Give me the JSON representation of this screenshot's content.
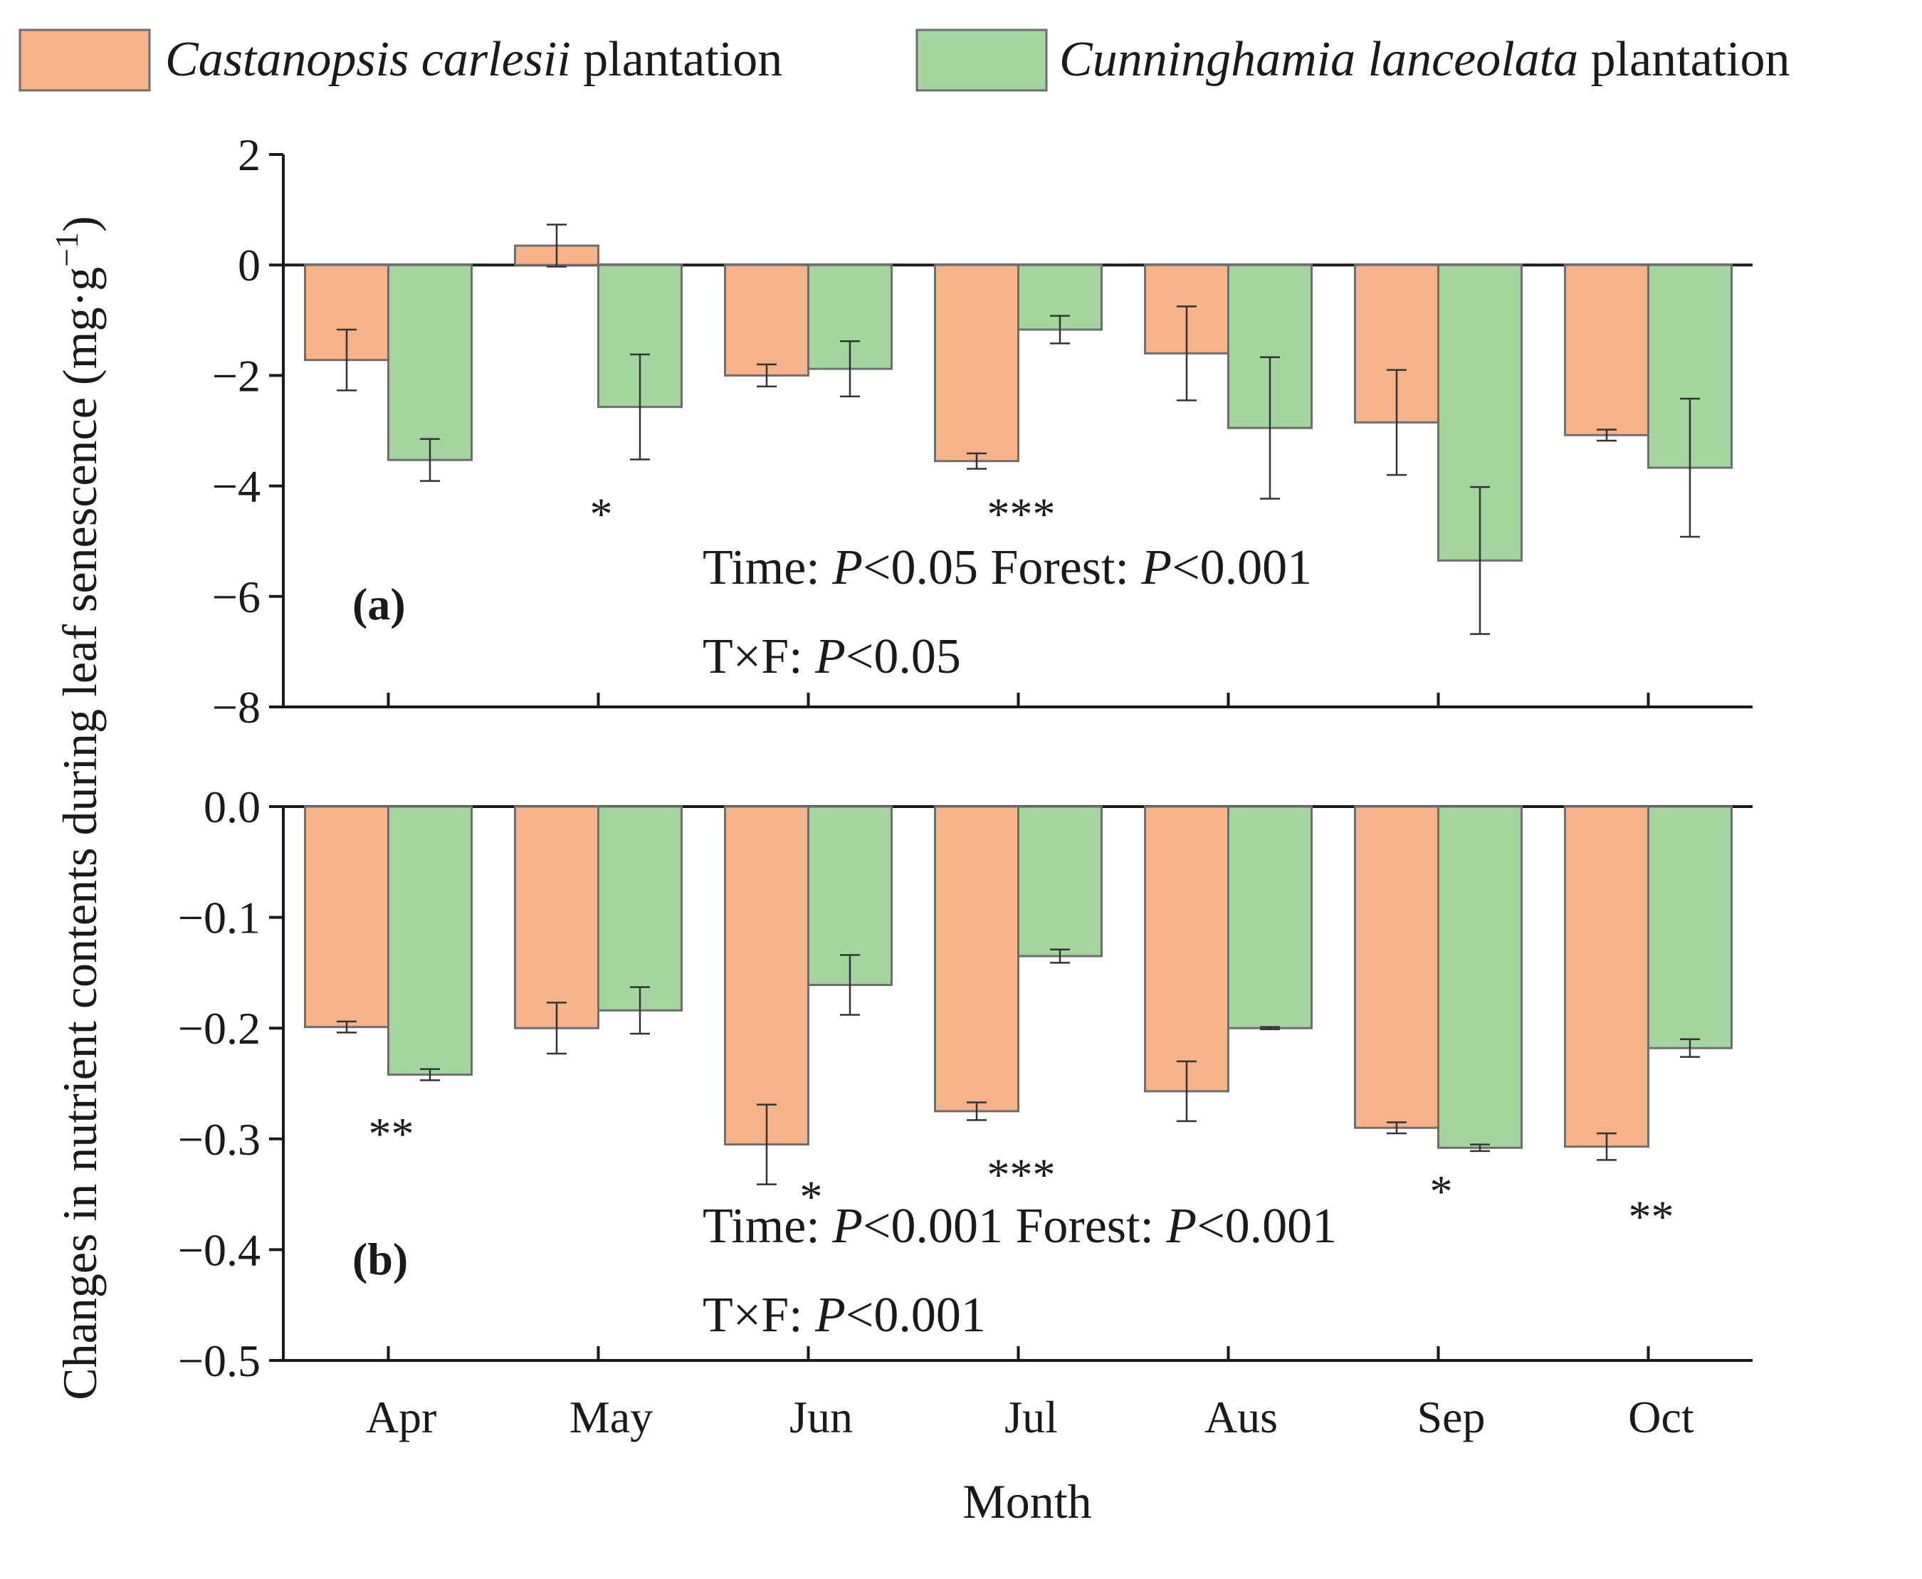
{
  "legend": [
    {
      "italic": "Castanopsis carlesii",
      "rest": " plantation",
      "color": "#f6b389"
    },
    {
      "italic": "Cunninghamia lanceolata",
      "rest": " plantation",
      "color": "#a3d69f"
    }
  ],
  "ylabel_main": "Changes in nutrient contents during leaf senescence (mg·g",
  "ylabel_sup": "−1",
  "ylabel_end": ")",
  "xlabel": "Month",
  "chart_data": [
    {
      "type": "bar",
      "panel": "(a)",
      "categories": [
        "Apr",
        "May",
        "Jun",
        "Jul",
        "Aus",
        "Sep",
        "Oct"
      ],
      "ylim": [
        -8,
        2
      ],
      "yticks": [
        2,
        0,
        -2,
        -4,
        -6,
        -8
      ],
      "ytick_labels": [
        "2",
        "0",
        "−2",
        "−4",
        "−6",
        "−8"
      ],
      "series": [
        {
          "values": [
            -1.72,
            0.35,
            -2.0,
            -3.55,
            -1.6,
            -2.85,
            -3.08
          ],
          "errors": [
            0.55,
            0.38,
            0.2,
            0.14,
            0.85,
            0.95,
            0.1
          ]
        },
        {
          "values": [
            -3.53,
            -2.57,
            -1.88,
            -1.17,
            -2.95,
            -5.35,
            -3.67
          ],
          "errors": [
            0.38,
            0.95,
            0.5,
            0.25,
            1.28,
            1.33,
            1.25
          ]
        }
      ],
      "significance": [
        {
          "category": "May",
          "label": "*",
          "y": -4.5
        },
        {
          "category": "Jul",
          "label": "***",
          "y": -4.5
        }
      ],
      "stats": {
        "line1_a": "Time: ",
        "line1_b": "P",
        "line1_c": "<0.05  Forest: ",
        "line1_d": "P",
        "line1_e": "<0.001",
        "line2_a": "T×F: ",
        "line2_b": "P",
        "line2_c": "<0.05"
      }
    },
    {
      "type": "bar",
      "panel": "(b)",
      "categories": [
        "Apr",
        "May",
        "Jun",
        "Jul",
        "Aus",
        "Sep",
        "Oct"
      ],
      "ylim": [
        -0.5,
        0.0
      ],
      "yticks": [
        0.0,
        -0.1,
        -0.2,
        -0.3,
        -0.4,
        -0.5
      ],
      "ytick_labels": [
        "0.0",
        "−0.1",
        "−0.2",
        "−0.3",
        "−0.4",
        "−0.5"
      ],
      "series": [
        {
          "values": [
            -0.199,
            -0.2,
            -0.305,
            -0.275,
            -0.257,
            -0.29,
            -0.307
          ],
          "errors": [
            0.005,
            0.023,
            0.036,
            0.008,
            0.027,
            0.005,
            0.012
          ]
        },
        {
          "values": [
            -0.242,
            -0.184,
            -0.161,
            -0.135,
            -0.2,
            -0.308,
            -0.218
          ],
          "errors": [
            0.005,
            0.021,
            0.027,
            0.006,
            0.001,
            0.003,
            0.008
          ]
        }
      ],
      "significance": [
        {
          "category": "Apr",
          "label": "**",
          "y": -0.295
        },
        {
          "category": "Jun",
          "label": "*",
          "y": -0.352
        },
        {
          "category": "Jul",
          "label": "***",
          "y": -0.332
        },
        {
          "category": "Sep",
          "label": "*",
          "y": -0.347
        },
        {
          "category": "Oct",
          "label": "**",
          "y": -0.37
        }
      ],
      "stats": {
        "line1_a": "Time: ",
        "line1_b": "P",
        "line1_c": "<0.001  Forest: ",
        "line1_d": "P",
        "line1_e": "<0.001",
        "line2_a": "T×F: ",
        "line2_b": "P",
        "line2_c": "<0.001"
      }
    }
  ]
}
